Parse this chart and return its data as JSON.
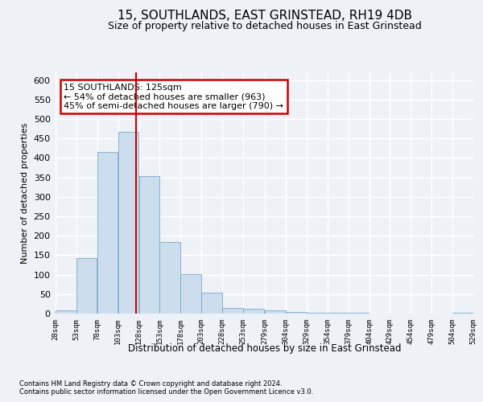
{
  "title": "15, SOUTHLANDS, EAST GRINSTEAD, RH19 4DB",
  "subtitle": "Size of property relative to detached houses in East Grinstead",
  "xlabel": "Distribution of detached houses by size in East Grinstead",
  "ylabel": "Number of detached properties",
  "footer1": "Contains HM Land Registry data © Crown copyright and database right 2024.",
  "footer2": "Contains public sector information licensed under the Open Government Licence v3.0.",
  "annotation_line1": "15 SOUTHLANDS: 125sqm",
  "annotation_line2": "← 54% of detached houses are smaller (963)",
  "annotation_line3": "45% of semi-detached houses are larger (790) →",
  "bar_color": "#ccdded",
  "bar_edge_color": "#7aaac8",
  "vline_color": "#cc0000",
  "annotation_box_color": "#cc0000",
  "bins": [
    28,
    53,
    78,
    103,
    128,
    153,
    178,
    203,
    228,
    253,
    279,
    304,
    329,
    354,
    379,
    404,
    429,
    454,
    479,
    504,
    529
  ],
  "counts": [
    8,
    143,
    415,
    467,
    354,
    184,
    102,
    54,
    15,
    12,
    9,
    5,
    3,
    2,
    3,
    0,
    0,
    0,
    0,
    3
  ],
  "property_size": 125,
  "ylim": [
    0,
    620
  ],
  "yticks": [
    0,
    50,
    100,
    150,
    200,
    250,
    300,
    350,
    400,
    450,
    500,
    550,
    600
  ],
  "background_color": "#eef2f7",
  "grid_color": "#ffffff",
  "title_fontsize": 11,
  "subtitle_fontsize": 9,
  "annotation_fontsize": 8,
  "ylabel_fontsize": 8,
  "xlabel_fontsize": 8.5,
  "ytick_fontsize": 8,
  "xtick_fontsize": 6.5,
  "footer_fontsize": 6
}
